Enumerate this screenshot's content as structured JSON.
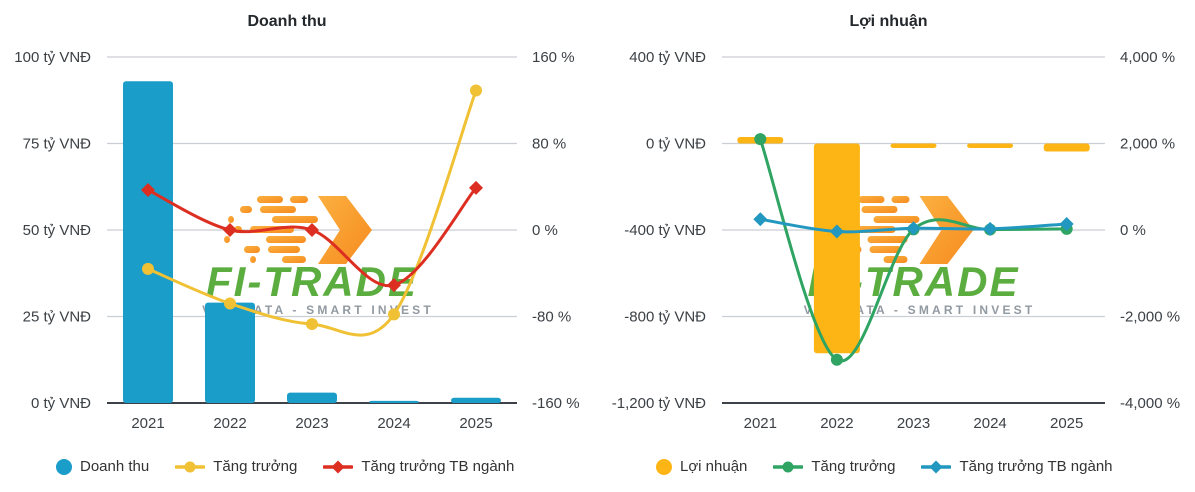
{
  "watermark": {
    "brand": "FI-TRADE",
    "tagline": "VAS DATA - SMART INVEST",
    "brand_color": "#5BAD3F",
    "tagline_color": "#9199A1",
    "logo_color_start": "#FBB040",
    "logo_color_end": "#F68B1F"
  },
  "colors": {
    "grid": "#CBCED3",
    "axis_line": "#3D4248",
    "axis_text": "#3C4146",
    "title_text": "#23282C"
  },
  "chart_data": [
    {
      "type": "bar",
      "subtype": "combo-bar-line-dual-axis",
      "title": "Doanh thu",
      "categories": [
        "2021",
        "2022",
        "2023",
        "2024",
        "2025"
      ],
      "bar_series": {
        "name": "Doanh thu",
        "unit": "tỷ VNĐ",
        "color": "#1B9DCA",
        "values": [
          93,
          29,
          3,
          0.6,
          1.5
        ]
      },
      "line_series": [
        {
          "name": "Tăng trưởng",
          "unit": "%",
          "color": "#F0C134",
          "marker": "circle",
          "values": [
            -36,
            -68,
            -87,
            -78,
            129
          ]
        },
        {
          "name": "Tăng trưởng TB ngành",
          "unit": "%",
          "color": "#DC2F21",
          "marker": "diamond",
          "values": [
            37,
            0,
            0,
            -51,
            39
          ]
        }
      ],
      "left_axis": {
        "min": 0,
        "max": 100,
        "step": 25,
        "labels": [
          "100 tỷ VNĐ",
          "75 tỷ VNĐ",
          "50 tỷ VNĐ",
          "25 tỷ VNĐ",
          "0 tỷ VNĐ"
        ]
      },
      "right_axis": {
        "min": -160,
        "max": 160,
        "step": 80,
        "labels": [
          "160 %",
          "80 %",
          "0 %",
          "-80 %",
          "-160 %"
        ]
      },
      "grid": true,
      "legend_position": "bottom"
    },
    {
      "type": "bar",
      "subtype": "combo-bar-line-dual-axis",
      "title": "Lợi nhuận",
      "categories": [
        "2021",
        "2022",
        "2023",
        "2024",
        "2025"
      ],
      "bar_series": {
        "name": "Lợi nhuận",
        "unit": "tỷ VNĐ",
        "color": "#FCB515",
        "values": [
          30,
          -970,
          -21,
          -21,
          -37
        ]
      },
      "line_series": [
        {
          "name": "Tăng trưởng",
          "unit": "%",
          "color": "#2FA463",
          "marker": "circle",
          "values": [
            2100,
            -3000,
            15,
            10,
            25
          ]
        },
        {
          "name": "Tăng trưởng TB ngành",
          "unit": "%",
          "color": "#2297BF",
          "marker": "diamond",
          "values": [
            250,
            -35,
            40,
            25,
            140
          ]
        }
      ],
      "left_axis": {
        "min": -1200,
        "max": 400,
        "step": 400,
        "labels": [
          "400 tỷ VNĐ",
          "0 tỷ VNĐ",
          "-400 tỷ VNĐ",
          "-800 tỷ VNĐ",
          "-1,200 tỷ VNĐ"
        ]
      },
      "right_axis": {
        "min": -4000,
        "max": 4000,
        "step": 2000,
        "labels": [
          "4,000 %",
          "2,000 %",
          "0 %",
          "-2,000 %",
          "-4,000 %"
        ]
      },
      "grid": true,
      "legend_position": "bottom"
    }
  ]
}
